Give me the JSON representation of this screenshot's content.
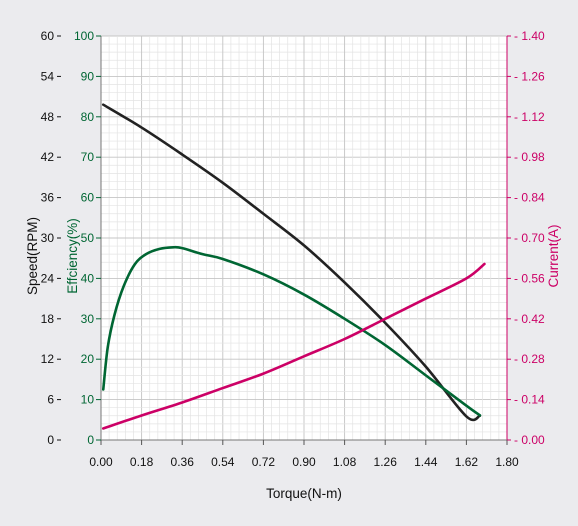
{
  "chart_data": {
    "type": "line",
    "xlabel": "Torque(N-m)",
    "x_ticks": [
      "0.00",
      "0.18",
      "0.36",
      "0.54",
      "0.72",
      "0.90",
      "1.08",
      "1.26",
      "1.44",
      "1.62",
      "1.80"
    ],
    "xlim": [
      0,
      1.8
    ],
    "grid": true,
    "axes": {
      "speed": {
        "label": "Speed(RPM)",
        "color": "#111111",
        "ylim": [
          0,
          60
        ],
        "ticks": [
          "0",
          "6",
          "12",
          "18",
          "24",
          "30",
          "36",
          "42",
          "48",
          "54",
          "60"
        ]
      },
      "efficiency": {
        "label": "Effciency(%)",
        "color": "#006633",
        "ylim": [
          0,
          100
        ],
        "ticks": [
          "0",
          "10",
          "20",
          "30",
          "40",
          "50",
          "60",
          "70",
          "80",
          "90",
          "100"
        ]
      },
      "current": {
        "label": "Current(A)",
        "color": "#cc0066",
        "ylim": [
          0,
          1.4
        ],
        "ticks": [
          "0.00",
          "0.14",
          "0.28",
          "0.42",
          "0.56",
          "0.70",
          "0.84",
          "0.98",
          "1.12",
          "1.26",
          "1.40"
        ]
      }
    },
    "series": [
      {
        "axis": "speed",
        "color": "#222222",
        "x": [
          0.01,
          0.18,
          0.36,
          0.54,
          0.72,
          0.9,
          1.08,
          1.26,
          1.44,
          1.62,
          1.68
        ],
        "y": [
          49.8,
          46.4,
          42.4,
          38.2,
          33.6,
          28.9,
          23.4,
          17.4,
          10.9,
          3.5,
          3.6
        ]
      },
      {
        "axis": "efficiency",
        "color": "#006633",
        "x": [
          0.01,
          0.03,
          0.06,
          0.1,
          0.15,
          0.2,
          0.26,
          0.32,
          0.36,
          0.45,
          0.54,
          0.72,
          0.9,
          1.08,
          1.26,
          1.44,
          1.62,
          1.68
        ],
        "y": [
          12.5,
          23,
          31,
          38,
          43.5,
          46,
          47.3,
          47.7,
          47.5,
          46,
          44.8,
          41,
          36,
          30,
          23.5,
          16,
          8.5,
          6.1
        ]
      },
      {
        "axis": "current",
        "color": "#cc0066",
        "x": [
          0.01,
          0.18,
          0.36,
          0.54,
          0.72,
          0.9,
          1.08,
          1.26,
          1.44,
          1.62,
          1.7
        ],
        "y": [
          0.04,
          0.085,
          0.13,
          0.18,
          0.23,
          0.29,
          0.35,
          0.42,
          0.49,
          0.56,
          0.61
        ]
      }
    ]
  }
}
